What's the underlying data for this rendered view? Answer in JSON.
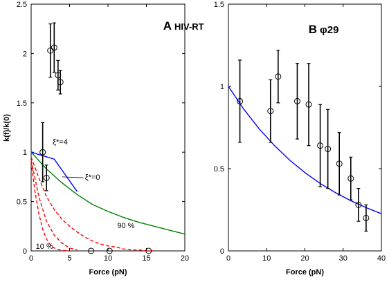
{
  "chart_data": [
    {
      "type": "line",
      "panel_letter": "A",
      "title": "HIV-RT",
      "xlabel": "Force (pN)",
      "ylabel": "k(f)/k(0)",
      "xlim": [
        0,
        20
      ],
      "ylim": [
        0,
        2.5
      ],
      "xticks": [
        "0",
        "5",
        "10",
        "15",
        "20"
      ],
      "yticks": [
        "0",
        "0.5",
        "1",
        "1.5",
        "2",
        "2.5"
      ],
      "grid": false,
      "points": {
        "name": "data",
        "x": [
          1.5,
          2.0,
          2.5,
          3.0,
          3.5,
          3.8,
          7.8,
          10.2,
          15.3
        ],
        "y": [
          1.0,
          0.74,
          2.03,
          2.06,
          1.78,
          1.71,
          0.0,
          0.0,
          0.0
        ],
        "err": [
          0.3,
          0.13,
          0.27,
          0.25,
          0.15,
          0.12,
          0.0,
          0.0,
          0.0
        ]
      },
      "series": [
        {
          "name": "ξ*=4",
          "color": "#0000ff",
          "style": "solid",
          "x": [
            0,
            3,
            6
          ],
          "y": [
            1.0,
            0.93,
            0.6
          ]
        },
        {
          "name": "ξ*=0",
          "color": "#008000",
          "style": "solid",
          "x": [
            0,
            2,
            4,
            6,
            8,
            10,
            12,
            14,
            16,
            18,
            20
          ],
          "y": [
            1.0,
            0.83,
            0.69,
            0.57,
            0.47,
            0.4,
            0.34,
            0.29,
            0.25,
            0.21,
            0.17
          ]
        },
        {
          "name": "90 %",
          "color": "#ff0000",
          "style": "dashed",
          "x": [
            0,
            1,
            2,
            3,
            4,
            5,
            6,
            7,
            8,
            9,
            10,
            11,
            12,
            13,
            14,
            15,
            16
          ],
          "y": [
            0.95,
            0.74,
            0.55,
            0.42,
            0.32,
            0.25,
            0.19,
            0.14,
            0.1,
            0.07,
            0.05,
            0.04,
            0.02,
            0.01,
            0.01,
            0.0,
            0.0
          ]
        },
        {
          "name": "",
          "color": "#ff0000",
          "style": "dashed",
          "x": [
            0,
            1,
            2,
            3,
            4,
            5,
            6
          ],
          "y": [
            0.92,
            0.55,
            0.3,
            0.16,
            0.08,
            0.03,
            0.01
          ]
        },
        {
          "name": "10 %",
          "color": "#ff0000",
          "style": "dashed",
          "x": [
            0,
            0.5,
            1,
            1.5,
            2,
            2.5,
            3,
            3.5,
            4,
            5
          ],
          "y": [
            0.9,
            0.6,
            0.38,
            0.22,
            0.12,
            0.06,
            0.03,
            0.015,
            0.005,
            0.0
          ]
        }
      ],
      "annotations": [
        {
          "text": "ξ*=4",
          "x": 2.8,
          "y": 1.08
        },
        {
          "text": "ξ*=0",
          "x": 7.0,
          "y": 0.72
        },
        {
          "text": "90 %",
          "x": 11.2,
          "y": 0.23
        },
        {
          "text": "10 %",
          "x": 0.6,
          "y": 0.02
        }
      ]
    },
    {
      "type": "line",
      "panel_letter": "B",
      "title": "φ29",
      "xlabel": "Force (pN)",
      "ylabel": "",
      "xlim": [
        0,
        40
      ],
      "ylim": [
        0,
        1.5
      ],
      "xticks": [
        "0",
        "10",
        "20",
        "30",
        "40"
      ],
      "yticks": [
        "0",
        "0.5",
        "1",
        "1.5"
      ],
      "grid": false,
      "points": {
        "name": "data",
        "x": [
          3,
          11,
          13,
          18,
          21,
          24,
          26,
          29,
          32,
          34,
          36
        ],
        "y": [
          0.91,
          0.85,
          1.06,
          0.91,
          0.89,
          0.64,
          0.62,
          0.53,
          0.44,
          0.28,
          0.2
        ],
        "err": [
          0.25,
          0.19,
          0.16,
          0.23,
          0.25,
          0.25,
          0.24,
          0.19,
          0.13,
          0.1,
          0.08
        ]
      },
      "series": [
        {
          "name": "",
          "color": "#0000ff",
          "style": "solid",
          "x": [
            0,
            4,
            8,
            12,
            16,
            20,
            24,
            28,
            32,
            36,
            40
          ],
          "y": [
            1.0,
            0.862,
            0.743,
            0.641,
            0.552,
            0.476,
            0.41,
            0.354,
            0.305,
            0.263,
            0.226
          ]
        }
      ],
      "annotations": []
    }
  ]
}
